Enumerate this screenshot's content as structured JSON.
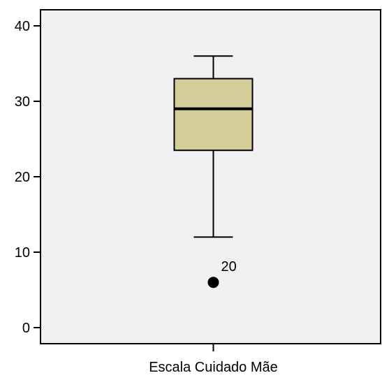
{
  "chart_data": {
    "type": "boxplot",
    "title": "",
    "xlabel": "",
    "ylabel": "",
    "ylim": [
      0,
      40
    ],
    "yticks": [
      0,
      10,
      20,
      30,
      40
    ],
    "grid": false,
    "categories": [
      "Escala Cuidado Mãe"
    ],
    "boxes": [
      {
        "category": "Escala Cuidado Mãe",
        "whisker_low": 12,
        "q1": 23.5,
        "median": 29,
        "q3": 33,
        "whisker_high": 36,
        "outliers": [
          {
            "value": 6,
            "label": "20"
          }
        ]
      }
    ],
    "colors": {
      "plot_background": "#f0f0f0",
      "box_fill": "#d3ce97",
      "stroke": "#000000"
    }
  }
}
